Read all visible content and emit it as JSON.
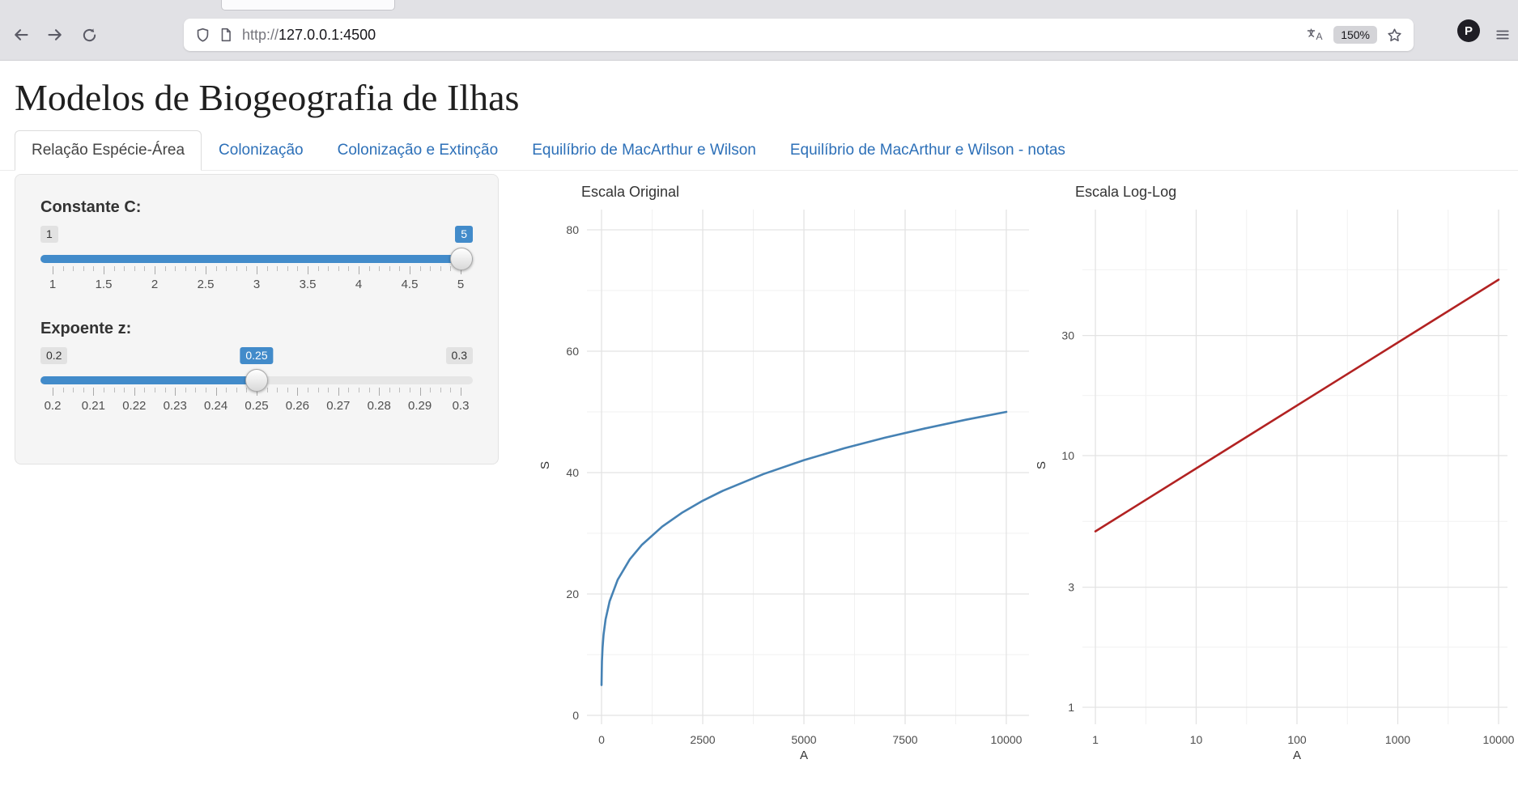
{
  "browser": {
    "url_scheme": "http://",
    "url_host": "127.0.0.1:4500",
    "zoom_badge": "150%",
    "profile_letter": "P"
  },
  "page": {
    "title": "Modelos de Biogeografia de Ilhas"
  },
  "tabs": [
    {
      "label": "Relação Espécie-Área",
      "active": true
    },
    {
      "label": "Colonização",
      "active": false
    },
    {
      "label": "Colonização e Extinção",
      "active": false
    },
    {
      "label": "Equilíbrio de MacArthur e Wilson",
      "active": false
    },
    {
      "label": "Equilíbrio de MacArthur e Wilson - notas",
      "active": false
    }
  ],
  "sidebar": {
    "accent_color": "#428bca",
    "slider_c": {
      "label": "Constante C:",
      "min_label": "1",
      "value_label": "5",
      "value": 5,
      "ticks": [
        "1",
        "1.5",
        "2",
        "2.5",
        "3",
        "3.5",
        "4",
        "4.5",
        "5"
      ]
    },
    "slider_z": {
      "label": "Expoente z:",
      "min_label": "0.2",
      "max_label": "0.3",
      "value_label": "0.25",
      "value": 0.25,
      "ticks": [
        "0.2",
        "0.21",
        "0.22",
        "0.23",
        "0.24",
        "0.25",
        "0.26",
        "0.27",
        "0.28",
        "0.29",
        "0.3"
      ]
    }
  },
  "chart_data": [
    {
      "type": "line",
      "title": "Escala Original",
      "xlabel": "A",
      "ylabel": "S",
      "scale": "linear",
      "xlim": [
        0,
        10000
      ],
      "ylim": [
        0,
        80
      ],
      "x_ticks": [
        0,
        2500,
        5000,
        7500,
        10000
      ],
      "y_ticks": [
        0,
        20,
        40,
        60,
        80
      ],
      "grid": true,
      "color": "#4682b4",
      "series": [
        {
          "x": [
            1,
            5,
            10,
            25,
            50,
            100,
            200,
            400,
            700,
            1000,
            1500,
            2000,
            2500,
            3000,
            4000,
            5000,
            6000,
            7000,
            8000,
            9000,
            10000
          ],
          "y": [
            5,
            7.48,
            8.89,
            11.18,
            13.3,
            15.81,
            18.8,
            22.36,
            25.72,
            28.12,
            31.11,
            33.44,
            35.36,
            37.01,
            39.76,
            42.05,
            44.01,
            45.74,
            47.29,
            48.71,
            50
          ]
        }
      ]
    },
    {
      "type": "line",
      "title": "Escala Log-Log",
      "xlabel": "A",
      "ylabel": "S",
      "scale": "log-log",
      "xlim": [
        1,
        10000
      ],
      "x_ticks": [
        1,
        10,
        100,
        1000,
        10000
      ],
      "y_ticks": [
        1,
        3,
        10,
        30
      ],
      "grid": true,
      "color": "#b22222",
      "series": [
        {
          "x": [
            1,
            10000
          ],
          "y": [
            5,
            50
          ]
        }
      ]
    }
  ]
}
